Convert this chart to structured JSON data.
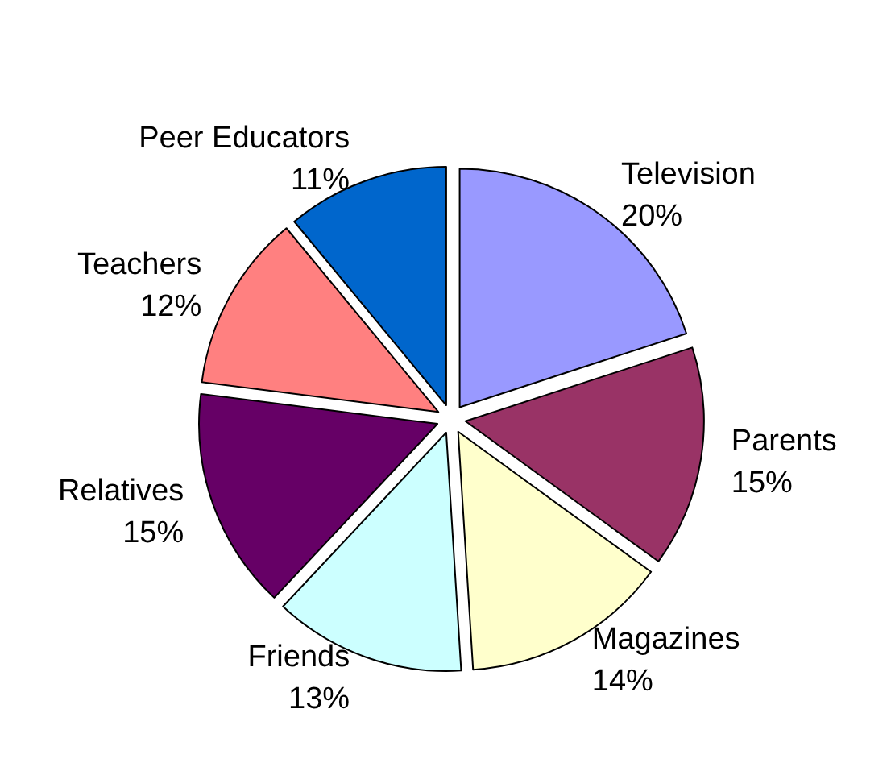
{
  "chart_data": {
    "type": "pie",
    "categories": [
      "Television",
      "Parents",
      "Magazines",
      "Friends",
      "Relatives",
      "Teachers",
      "Peer Educators"
    ],
    "values": [
      20,
      15,
      14,
      13,
      15,
      12,
      11
    ],
    "value_labels": [
      "20%",
      "15%",
      "14%",
      "13%",
      "15%",
      "12%",
      "11%"
    ],
    "colors": [
      "#9999ff",
      "#993366",
      "#ffffcc",
      "#ccffff",
      "#660066",
      "#ff8080",
      "#0066cc"
    ],
    "legend": false
  }
}
